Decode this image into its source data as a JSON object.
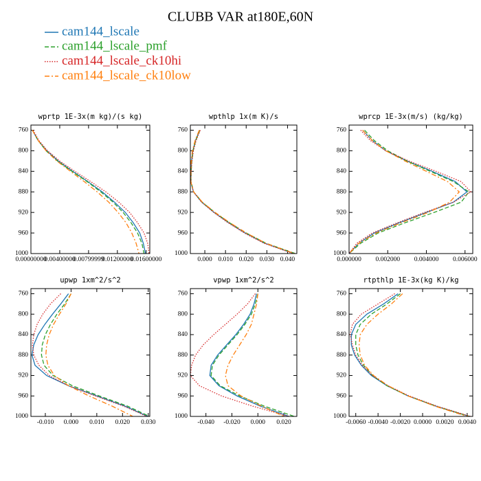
{
  "title": "CLUBB VAR at180E,60N",
  "legend": [
    {
      "name": "cam144_lscale",
      "color": "#1f77b4",
      "style": "solid"
    },
    {
      "name": "cam144_lscale_pmf",
      "color": "#2ca02c",
      "style": "dashed"
    },
    {
      "name": "cam144_lscale_ck10hi",
      "color": "#d62728",
      "style": "dotted"
    },
    {
      "name": "cam144_lscale_ck10low",
      "color": "#ff7f0e",
      "style": "dashdot"
    }
  ],
  "chart_data": [
    {
      "type": "line",
      "title": "wprtp  1E-3x(m kg)/(s kg)",
      "xlim": [
        0,
        0.0165
      ],
      "xticks": [
        {
          "value": 0,
          "label": "0.00000000"
        },
        {
          "value": 0.004,
          "label": "0.00400000"
        },
        {
          "value": 0.008,
          "label": "0.00799999"
        },
        {
          "value": 0.012,
          "label": "0.01200000"
        },
        {
          "value": 0.016,
          "label": "0.01600000"
        }
      ],
      "ylim": [
        750,
        1000
      ],
      "y_inverted": true,
      "yticks": [
        760,
        800,
        840,
        880,
        920,
        960,
        1000
      ],
      "y": [
        760,
        780,
        800,
        820,
        840,
        860,
        880,
        900,
        920,
        940,
        960,
        980,
        1000
      ],
      "series": [
        {
          "values": [
            0.0002,
            0.001,
            0.0022,
            0.0038,
            0.0058,
            0.0079,
            0.0099,
            0.0116,
            0.0131,
            0.0142,
            0.0151,
            0.0156,
            0.0159
          ]
        },
        {
          "values": [
            0.0002,
            0.001,
            0.0021,
            0.0037,
            0.0057,
            0.0078,
            0.0097,
            0.0114,
            0.0128,
            0.0139,
            0.0148,
            0.0154,
            0.0157
          ]
        },
        {
          "values": [
            0.0003,
            0.0011,
            0.0023,
            0.004,
            0.0061,
            0.0083,
            0.0104,
            0.0122,
            0.0137,
            0.0148,
            0.0157,
            0.0162,
            0.0164
          ]
        },
        {
          "values": [
            0.0002,
            0.001,
            0.0021,
            0.0036,
            0.0055,
            0.0074,
            0.0092,
            0.0108,
            0.0121,
            0.0132,
            0.014,
            0.0146,
            0.015
          ]
        }
      ]
    },
    {
      "type": "line",
      "title": "wpthlp  1x(m K)/s",
      "xlim": [
        -0.007,
        0.0445
      ],
      "xticks": [
        {
          "value": 0,
          "label": "0.000"
        },
        {
          "value": 0.01,
          "label": "0.010"
        },
        {
          "value": 0.02,
          "label": "0.020"
        },
        {
          "value": 0.03,
          "label": "0.030"
        },
        {
          "value": 0.04,
          "label": "0.040"
        }
      ],
      "ylim": [
        750,
        1000
      ],
      "y_inverted": true,
      "yticks": [
        760,
        800,
        840,
        880,
        920,
        960,
        1000
      ],
      "y": [
        760,
        780,
        800,
        820,
        840,
        860,
        880,
        900,
        920,
        940,
        960,
        980,
        1000
      ],
      "series": [
        {
          "values": [
            -0.0025,
            -0.0045,
            -0.0058,
            -0.0064,
            -0.0067,
            -0.0068,
            -0.0055,
            -0.0015,
            0.0045,
            0.0115,
            0.0195,
            0.029,
            0.043
          ]
        },
        {
          "values": [
            -0.0024,
            -0.0044,
            -0.0057,
            -0.0063,
            -0.0066,
            -0.0067,
            -0.0054,
            -0.0013,
            0.0048,
            0.0119,
            0.02,
            0.0296,
            0.0438
          ]
        },
        {
          "values": [
            -0.0022,
            -0.0042,
            -0.0055,
            -0.0062,
            -0.0066,
            -0.0067,
            -0.0055,
            -0.0016,
            0.0043,
            0.0112,
            0.0191,
            0.0286,
            0.0428
          ]
        },
        {
          "values": [
            -0.0027,
            -0.0047,
            -0.006,
            -0.0066,
            -0.0068,
            -0.0068,
            -0.0054,
            -0.0012,
            0.005,
            0.0121,
            0.0201,
            0.0295,
            0.0434
          ]
        }
      ]
    },
    {
      "type": "line",
      "title": "wprcp  1E-3x(m/s) (kg/kg)",
      "xlim": [
        0,
        0.0064
      ],
      "xticks": [
        {
          "value": 0,
          "label": "0.000000"
        },
        {
          "value": 0.002,
          "label": "0.002000"
        },
        {
          "value": 0.004,
          "label": "0.004000"
        },
        {
          "value": 0.006,
          "label": "0.006000"
        }
      ],
      "ylim": [
        750,
        1000
      ],
      "y_inverted": true,
      "yticks": [
        760,
        800,
        840,
        880,
        920,
        960,
        1000
      ],
      "y": [
        760,
        780,
        800,
        820,
        840,
        860,
        880,
        900,
        920,
        940,
        960,
        980,
        1000
      ],
      "series": [
        {
          "values": [
            0.0007,
            0.0012,
            0.0019,
            0.003,
            0.0043,
            0.0055,
            0.0061,
            0.0054,
            0.004,
            0.0026,
            0.0013,
            0.0005,
            0.0
          ]
        },
        {
          "values": [
            0.0008,
            0.0013,
            0.002,
            0.003,
            0.0042,
            0.0054,
            0.0062,
            0.0058,
            0.0044,
            0.0029,
            0.0015,
            0.0006,
            0.0
          ]
        },
        {
          "values": [
            0.0006,
            0.0011,
            0.0019,
            0.0031,
            0.0045,
            0.0058,
            0.0063,
            0.0054,
            0.0039,
            0.0025,
            0.0012,
            0.0004,
            0.0
          ]
        },
        {
          "values": [
            0.0007,
            0.0012,
            0.0019,
            0.0029,
            0.004,
            0.0051,
            0.0057,
            0.0052,
            0.0041,
            0.0027,
            0.0014,
            0.0005,
            0.0
          ]
        }
      ]
    },
    {
      "type": "line",
      "title": "upwp  1xm^2/s^2",
      "xlim": [
        -0.0156,
        0.0306
      ],
      "xticks": [
        {
          "value": -0.01,
          "label": "-0.010"
        },
        {
          "value": 0,
          "label": "0.000"
        },
        {
          "value": 0.01,
          "label": "0.010"
        },
        {
          "value": 0.02,
          "label": "0.020"
        },
        {
          "value": 0.03,
          "label": "0.030"
        }
      ],
      "ylim": [
        750,
        1000
      ],
      "y_inverted": true,
      "yticks": [
        760,
        800,
        840,
        880,
        920,
        960,
        1000
      ],
      "y": [
        760,
        780,
        800,
        820,
        840,
        860,
        880,
        900,
        920,
        940,
        960,
        980,
        1000
      ],
      "series": [
        {
          "values": [
            -0.001,
            -0.004,
            -0.0072,
            -0.0102,
            -0.0128,
            -0.0145,
            -0.0152,
            -0.014,
            -0.0095,
            -0.001,
            0.01,
            0.021,
            0.0298
          ]
        },
        {
          "values": [
            0.0,
            -0.0025,
            -0.0055,
            -0.008,
            -0.01,
            -0.0112,
            -0.0115,
            -0.0105,
            -0.007,
            0.0005,
            0.011,
            0.022,
            0.0305
          ]
        },
        {
          "values": [
            -0.004,
            -0.008,
            -0.011,
            -0.0132,
            -0.0145,
            -0.015,
            -0.0145,
            -0.0125,
            -0.0085,
            -0.001,
            0.0095,
            0.0205,
            0.0295
          ]
        },
        {
          "values": [
            0.0,
            -0.002,
            -0.0045,
            -0.0068,
            -0.0085,
            -0.0095,
            -0.0098,
            -0.009,
            -0.0065,
            -0.001,
            0.007,
            0.016,
            0.024
          ]
        }
      ]
    },
    {
      "type": "line",
      "title": "vpwp  1xm^2/s^2",
      "xlim": [
        -0.052,
        0.03
      ],
      "xticks": [
        {
          "value": -0.04,
          "label": "-0.040"
        },
        {
          "value": -0.02,
          "label": "-0.020"
        },
        {
          "value": 0,
          "label": "0.000"
        },
        {
          "value": 0.02,
          "label": "0.020"
        }
      ],
      "ylim": [
        750,
        1000
      ],
      "y_inverted": true,
      "yticks": [
        760,
        800,
        840,
        880,
        920,
        960,
        1000
      ],
      "y": [
        760,
        780,
        800,
        820,
        840,
        860,
        880,
        900,
        920,
        940,
        960,
        980,
        1000
      ],
      "series": [
        {
          "values": [
            -0.001,
            -0.003,
            -0.006,
            -0.011,
            -0.017,
            -0.024,
            -0.031,
            -0.036,
            -0.037,
            -0.03,
            -0.016,
            0.002,
            0.024
          ]
        },
        {
          "values": [
            0.0,
            -0.002,
            -0.005,
            -0.01,
            -0.016,
            -0.023,
            -0.03,
            -0.035,
            -0.036,
            -0.029,
            -0.014,
            0.005,
            0.028
          ]
        },
        {
          "values": [
            -0.002,
            -0.008,
            -0.016,
            -0.025,
            -0.034,
            -0.042,
            -0.048,
            -0.051,
            -0.052,
            -0.045,
            -0.028,
            -0.004,
            0.024
          ]
        },
        {
          "values": [
            0.0,
            -0.001,
            -0.003,
            -0.005,
            -0.009,
            -0.014,
            -0.019,
            -0.023,
            -0.025,
            -0.023,
            -0.013,
            0.003,
            0.02
          ]
        }
      ]
    },
    {
      "type": "line",
      "title": "rtpthlp  1E-3x(kg K)/kg",
      "xlim": [
        -0.0066,
        0.0045
      ],
      "xticks": [
        {
          "value": -0.006,
          "label": "-0.0060"
        },
        {
          "value": -0.004,
          "label": "-0.0040"
        },
        {
          "value": -0.002,
          "label": "-0.0020"
        },
        {
          "value": 0,
          "label": "0.0000"
        },
        {
          "value": 0.002,
          "label": "0.0020"
        },
        {
          "value": 0.004,
          "label": "0.0040"
        }
      ],
      "ylim": [
        750,
        1000
      ],
      "y_inverted": true,
      "yticks": [
        760,
        800,
        840,
        880,
        920,
        960,
        1000
      ],
      "y": [
        760,
        780,
        800,
        820,
        840,
        860,
        880,
        900,
        920,
        940,
        960,
        980,
        1000
      ],
      "series": [
        {
          "values": [
            -0.0022,
            -0.0035,
            -0.005,
            -0.006,
            -0.0064,
            -0.0064,
            -0.0061,
            -0.0055,
            -0.0046,
            -0.0032,
            -0.0013,
            0.0012,
            0.0042
          ]
        },
        {
          "values": [
            -0.002,
            -0.0032,
            -0.0046,
            -0.0056,
            -0.006,
            -0.006,
            -0.0058,
            -0.0053,
            -0.0045,
            -0.0032,
            -0.0013,
            0.0012,
            0.0042
          ]
        },
        {
          "values": [
            -0.0025,
            -0.004,
            -0.0055,
            -0.0063,
            -0.0065,
            -0.0063,
            -0.006,
            -0.0054,
            -0.0045,
            -0.0031,
            -0.0012,
            0.0013,
            0.0043
          ]
        },
        {
          "values": [
            -0.0018,
            -0.0028,
            -0.004,
            -0.005,
            -0.0056,
            -0.0057,
            -0.0056,
            -0.0052,
            -0.0044,
            -0.0031,
            -0.0013,
            0.0011,
            0.004
          ]
        }
      ]
    }
  ]
}
